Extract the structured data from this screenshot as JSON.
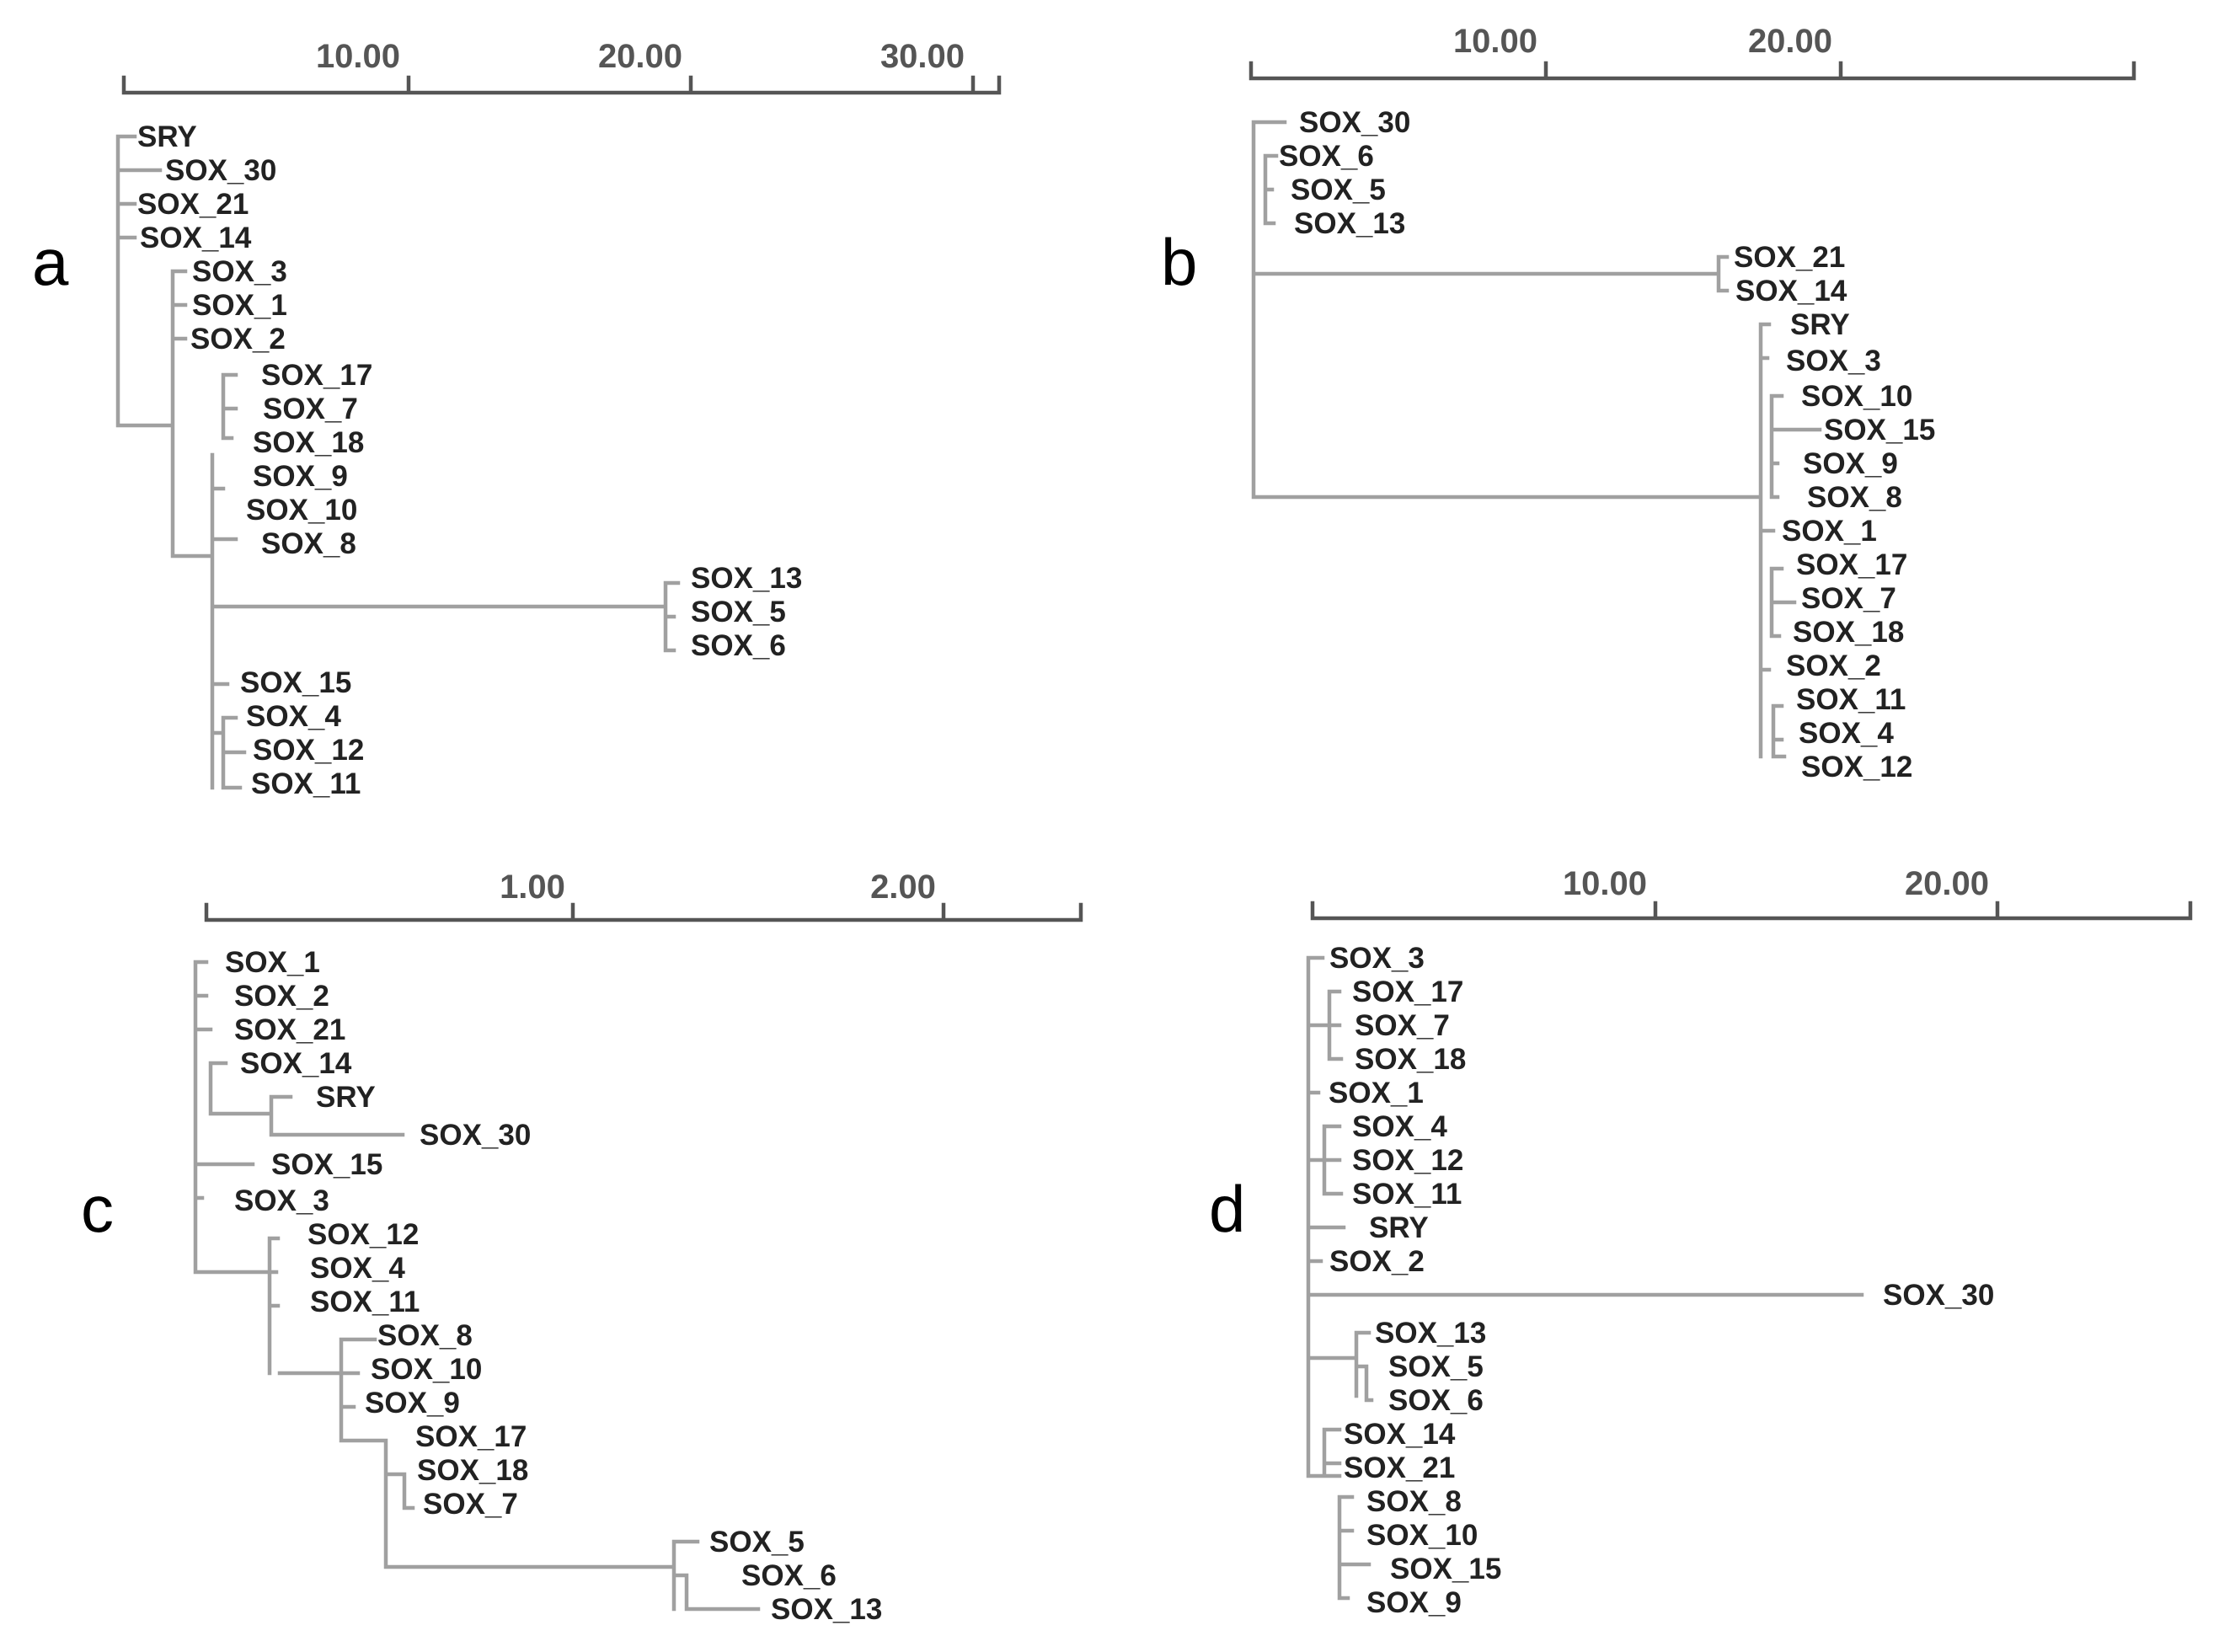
{
  "figure": {
    "panels": [
      {
        "id": "a",
        "panel_label": "a",
        "scale_labels": [
          "10.00",
          "20.00",
          "30.00"
        ],
        "leaves": [
          "SRY",
          "SOX_30",
          "SOX_21",
          "SOX_14",
          "SOX_3",
          "SOX_1",
          "SOX_2",
          "SOX_17",
          "SOX_7",
          "SOX_18",
          "SOX_9",
          "SOX_10",
          "SOX_8",
          "SOX_13",
          "SOX_5",
          "SOX_6",
          "SOX_15",
          "SOX_4",
          "SOX_12",
          "SOX_11"
        ]
      },
      {
        "id": "b",
        "panel_label": "b",
        "scale_labels": [
          "10.00",
          "20.00"
        ],
        "leaves": [
          "SOX_30",
          "SOX_6",
          "SOX_5",
          "SOX_13",
          "SOX_21",
          "SOX_14",
          "SRY",
          "SOX_3",
          "SOX_10",
          "SOX_15",
          "SOX_9",
          "SOX_8",
          "SOX_1",
          "SOX_17",
          "SOX_7",
          "SOX_18",
          "SOX_2",
          "SOX_11",
          "SOX_4",
          "SOX_12"
        ]
      },
      {
        "id": "c",
        "panel_label": "c",
        "scale_labels": [
          "1.00",
          "2.00"
        ],
        "leaves": [
          "SOX_1",
          "SOX_2",
          "SOX_21",
          "SOX_14",
          "SRY",
          "SOX_30",
          "SOX_15",
          "SOX_3",
          "SOX_12",
          "SOX_4",
          "SOX_11",
          "SOX_8",
          "SOX_10",
          "SOX_9",
          "SOX_17",
          "SOX_18",
          "SOX_7",
          "SOX_5",
          "SOX_6",
          "SOX_13"
        ]
      },
      {
        "id": "d",
        "panel_label": "d",
        "scale_labels": [
          "10.00",
          "20.00"
        ],
        "leaves": [
          "SOX_3",
          "SOX_17",
          "SOX_7",
          "SOX_18",
          "SOX_1",
          "SOX_4",
          "SOX_12",
          "SOX_11",
          "SRY",
          "SOX_2",
          "SOX_30",
          "SOX_13",
          "SOX_5",
          "SOX_6",
          "SOX_14",
          "SOX_21",
          "SOX_8",
          "SOX_10",
          "SOX_15",
          "SOX_9"
        ]
      }
    ]
  }
}
